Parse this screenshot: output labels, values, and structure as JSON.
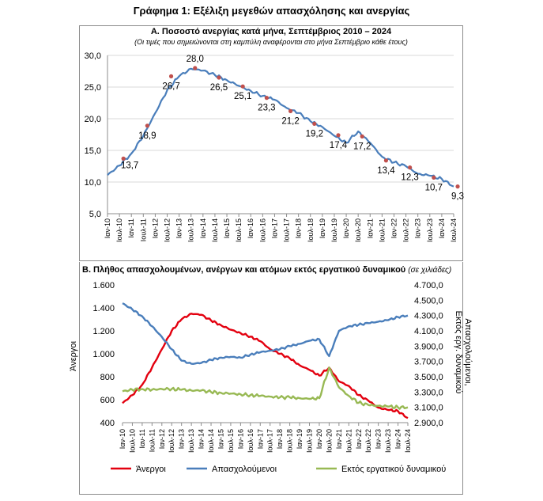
{
  "main_title": "Γράφημα 1: Εξέλιξη μεγεθών απασχόλησης και ανεργίας",
  "colors": {
    "unemployed": "#E3000F",
    "employed": "#4A7EBB",
    "inactive": "#98B954",
    "line_a": "#4A7EBB",
    "marker_a": "#C0504D",
    "grid": "#D9D9D9"
  },
  "chart_data": [
    {
      "type": "line",
      "title": "Α. Ποσοστό ανεργίας κατά μήνα, Σεπτέμβριος 2010 – 2024",
      "subtitle": "(Οι τιμές που σημειώνονται στη καμπύλη αναφέρονται στο μήνα Σεπτέμβριο κάθε έτους)",
      "ylim": [
        5,
        30
      ],
      "y_ticks": [
        "5,0",
        "10,0",
        "15,0",
        "20,0",
        "25,0",
        "30,0"
      ],
      "x_ticks": [
        "Ιαν-10",
        "Ιουλ-10",
        "Ιαν-11",
        "Ιουλ-11",
        "Ιαν-12",
        "Ιουλ-12",
        "Ιαν-13",
        "Ιουλ-13",
        "Ιαν-14",
        "Ιουλ-14",
        "Ιαν-15",
        "Ιουλ-15",
        "Ιαν-16",
        "Ιουλ-16",
        "Ιαν-17",
        "Ιουλ-17",
        "Ιαν-18",
        "Ιουλ-18",
        "Ιαν-19",
        "Ιουλ-19",
        "Ιαν-20",
        "Ιουλ-20",
        "Ιαν-21",
        "Ιουλ-21",
        "Ιαν-22",
        "Ιουλ-22",
        "Ιαν-23",
        "Ιουλ-23",
        "Ιαν-24",
        "Ιουλ-24"
      ],
      "grid": true,
      "series": [
        {
          "x": [
            "Ιαν-10",
            "Ιουλ-10",
            "Ιαν-11",
            "Ιουλ-11",
            "Ιαν-12",
            "Ιουλ-12",
            "Ιαν-13",
            "Ιουλ-13",
            "Ιαν-14",
            "Ιουλ-14",
            "Ιαν-15",
            "Ιουλ-15",
            "Ιαν-16",
            "Ιουλ-16",
            "Ιαν-17",
            "Ιουλ-17",
            "Ιαν-18",
            "Ιουλ-18",
            "Ιαν-19",
            "Ιουλ-19",
            "Ιαν-20",
            "Ιουλ-20",
            "Ιαν-21",
            "Ιουλ-21",
            "Ιαν-22",
            "Ιουλ-22",
            "Ιαν-23",
            "Ιουλ-23",
            "Ιαν-24",
            "Ιουλ-24"
          ],
          "values": [
            11.1,
            12.6,
            14.5,
            17.3,
            20.9,
            24.5,
            26.7,
            27.9,
            27.6,
            26.9,
            26.1,
            25.2,
            24.4,
            23.6,
            23.0,
            21.7,
            20.9,
            19.6,
            18.7,
            17.3,
            16.2,
            18.0,
            16.2,
            14.0,
            13.1,
            12.5,
            11.3,
            11.0,
            10.5,
            9.3
          ]
        }
      ],
      "september_labels": [
        {
          "x": "Σεπ-10",
          "value": 13.7,
          "label": "13,7"
        },
        {
          "x": "Σεπ-11",
          "value": 18.9,
          "label": "18,9"
        },
        {
          "x": "Σεπ-12",
          "value": 26.7,
          "label": "26,7"
        },
        {
          "x": "Σεπ-13",
          "value": 28.0,
          "label": "28,0"
        },
        {
          "x": "Σεπ-14",
          "value": 26.5,
          "label": "26,5"
        },
        {
          "x": "Σεπ-15",
          "value": 25.1,
          "label": "25,1"
        },
        {
          "x": "Σεπ-16",
          "value": 23.3,
          "label": "23,3"
        },
        {
          "x": "Σεπ-17",
          "value": 21.2,
          "label": "21,2"
        },
        {
          "x": "Σεπ-18",
          "value": 19.2,
          "label": "19,2"
        },
        {
          "x": "Σεπ-19",
          "value": 17.4,
          "label": "17,4"
        },
        {
          "x": "Σεπ-20",
          "value": 17.2,
          "label": "17,2"
        },
        {
          "x": "Σεπ-21",
          "value": 13.4,
          "label": "13,4"
        },
        {
          "x": "Σεπ-22",
          "value": 12.3,
          "label": "12,3"
        },
        {
          "x": "Σεπ-23",
          "value": 10.7,
          "label": "10,7"
        },
        {
          "x": "Σεπ-24",
          "value": 9.3,
          "label": "9,3"
        }
      ]
    },
    {
      "type": "line",
      "title": "Β. Πλήθος απασχολουμένων, ανέργων και ατόμων εκτός εργατικού δυναμικού",
      "unit_note": "(σε χιλιάδες)",
      "ylabel": "Άνεργοι",
      "y2label": [
        "Απασχολούμενοι,",
        "Εκτός εργ. δυναμικού"
      ],
      "ylim": [
        400,
        1600
      ],
      "y2lim": [
        2900,
        4700
      ],
      "y_ticks": [
        "400",
        "600",
        "800",
        "1.000",
        "1.200",
        "1.400",
        "1.600"
      ],
      "y2_ticks": [
        "2.900,0",
        "3.100,0",
        "3.300,0",
        "3.500,0",
        "3.700,0",
        "3.900,0",
        "4.100,0",
        "4.300,0",
        "4.500,0",
        "4.700,0"
      ],
      "x_ticks": [
        "Ιαν-10",
        "Ιουλ-10",
        "Ιαν-11",
        "Ιουλ-11",
        "Ιαν-12",
        "Ιουλ-12",
        "Ιαν-13",
        "Ιουλ-13",
        "Ιαν-14",
        "Ιουλ-14",
        "Ιαν-15",
        "Ιουλ-15",
        "Ιαν-16",
        "Ιουλ-16",
        "Ιαν-17",
        "Ιουλ-17",
        "Ιαν-18",
        "Ιουλ-18",
        "Ιαν-19",
        "Ιουλ-19",
        "Ιαν-20",
        "Ιουλ-20",
        "Ιαν-21",
        "Ιουλ-21",
        "Ιαν-22",
        "Ιουλ-22",
        "Ιαν-23",
        "Ιουλ-23",
        "Ιαν-24",
        "Ιουλ-24"
      ],
      "legend": "bottom",
      "series": [
        {
          "name": "Άνεργοι",
          "axis": "left",
          "color": "#E3000F",
          "values": [
            570,
            640,
            730,
            880,
            1040,
            1200,
            1300,
            1350,
            1340,
            1290,
            1250,
            1210,
            1180,
            1150,
            1110,
            1040,
            1000,
            960,
            900,
            860,
            810,
            880,
            760,
            720,
            640,
            590,
            530,
            510,
            500,
            440
          ]
        },
        {
          "name": "Απασχολούμενοι",
          "axis": "right",
          "color": "#4A7EBB",
          "values": [
            4460,
            4380,
            4290,
            4160,
            4020,
            3860,
            3710,
            3670,
            3680,
            3720,
            3750,
            3760,
            3750,
            3790,
            3820,
            3840,
            3860,
            3900,
            3930,
            3970,
            3990,
            3770,
            4100,
            4160,
            4180,
            4200,
            4220,
            4240,
            4280,
            4300
          ]
        },
        {
          "name": "Εκτός εργατικού δυναμικού",
          "axis": "right",
          "color": "#98B954",
          "values": [
            3310,
            3330,
            3340,
            3330,
            3340,
            3340,
            3330,
            3320,
            3320,
            3300,
            3290,
            3280,
            3270,
            3260,
            3250,
            3240,
            3230,
            3230,
            3220,
            3210,
            3220,
            3620,
            3360,
            3250,
            3160,
            3130,
            3120,
            3110,
            3100,
            3100
          ]
        }
      ]
    }
  ]
}
